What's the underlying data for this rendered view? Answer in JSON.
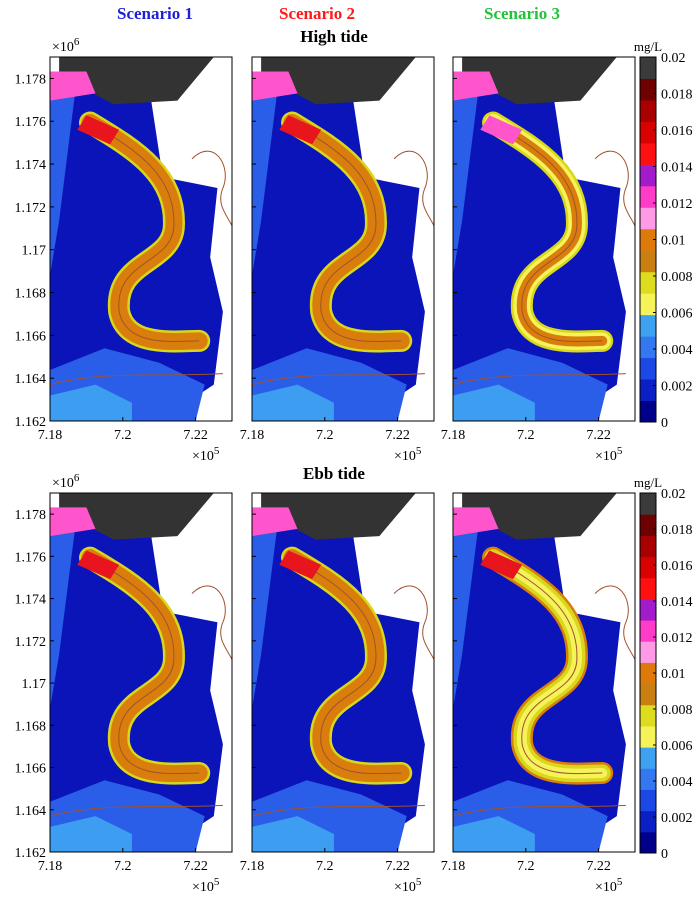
{
  "scenarios": [
    {
      "label": "Scenario 1",
      "color": "#1f1fd6"
    },
    {
      "label": "Scenario 2",
      "color": "#ff1a1a"
    },
    {
      "label": "Scenario 3",
      "color": "#22c23a"
    }
  ],
  "chart_data": [
    {
      "type": "heatmap",
      "title": "High tide",
      "panels": [
        "Scenario 1",
        "Scenario 2",
        "Scenario 3"
      ],
      "xlim": [
        7.18,
        7.23
      ],
      "ylim": [
        1.162,
        1.179
      ],
      "xticks": [
        "7.18",
        "7.2",
        "7.22"
      ],
      "yticks": [
        "1.162",
        "1.164",
        "1.166",
        "1.168",
        "1.17",
        "1.172",
        "1.174",
        "1.176",
        "1.178"
      ],
      "x_exponent": "×10^5",
      "y_exponent": "×10^6",
      "colorbar": {
        "label": "mg/L",
        "range": [
          0,
          0.02
        ],
        "ticks": [
          "0",
          "0.002",
          "0.004",
          "0.006",
          "0.008",
          "0.01",
          "0.012",
          "0.014",
          "0.016",
          "0.018",
          "0.02"
        ]
      }
    },
    {
      "type": "heatmap",
      "title": "Ebb tide",
      "panels": [
        "Scenario 1",
        "Scenario 2",
        "Scenario 3"
      ],
      "xlim": [
        7.18,
        7.23
      ],
      "ylim": [
        1.162,
        1.179
      ],
      "xticks": [
        "7.18",
        "7.2",
        "7.22"
      ],
      "yticks": [
        "1.162",
        "1.164",
        "1.166",
        "1.168",
        "1.17",
        "1.172",
        "1.174",
        "1.176",
        "1.178"
      ],
      "x_exponent": "×10^5",
      "y_exponent": "×10^6",
      "colorbar": {
        "label": "mg/L",
        "range": [
          0,
          0.02
        ],
        "ticks": [
          "0",
          "0.002",
          "0.004",
          "0.006",
          "0.008",
          "0.01",
          "0.012",
          "0.014",
          "0.016",
          "0.018",
          "0.02"
        ]
      }
    }
  ],
  "colorbar_colors": [
    "#00008b",
    "#0a1fc4",
    "#1c48e6",
    "#3478f0",
    "#3ea2f2",
    "#f6f25a",
    "#dddc1f",
    "#c97f12",
    "#dd7a0a",
    "#ff9be6",
    "#ff3cc8",
    "#a21ccc",
    "#ff1010",
    "#d80000",
    "#a80000",
    "#6e0000",
    "#3b3b3b"
  ],
  "map_colors": {
    "deep": "#0a14b8",
    "mid": "#2a5ee8",
    "light": "#3d9df0",
    "yellow": "#d8d71c",
    "pale": "#f5f25a",
    "orange": "#d97e0c",
    "dark": "#333333",
    "pink": "#ff55cc",
    "magenta": "#cc22bb",
    "red": "#e8141e",
    "banks": "#a0522d"
  },
  "exponent_labels": {
    "x_base": "×10",
    "x_pow": "5",
    "y_base": "×10",
    "y_pow": "6"
  }
}
